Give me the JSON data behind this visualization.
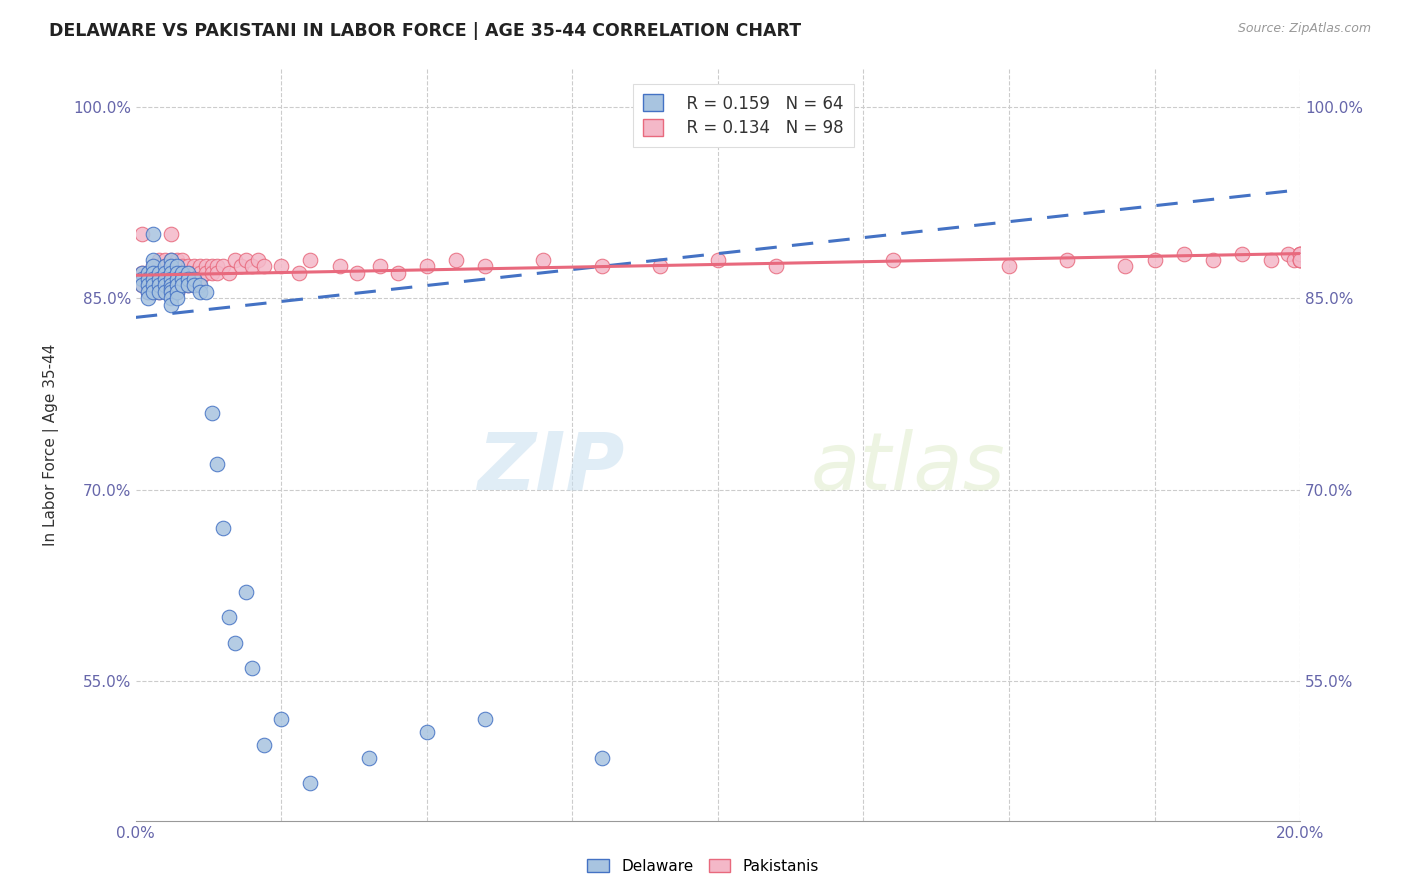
{
  "title": "DELAWARE VS PAKISTANI IN LABOR FORCE | AGE 35-44 CORRELATION CHART",
  "source": "Source: ZipAtlas.com",
  "ylabel": "In Labor Force | Age 35-44",
  "xlim": [
    0.0,
    0.2
  ],
  "ylim": [
    0.44,
    1.03
  ],
  "xticks": [
    0.0,
    0.025,
    0.05,
    0.075,
    0.1,
    0.125,
    0.15,
    0.175,
    0.2
  ],
  "xticklabels": [
    "0.0%",
    "",
    "",
    "",
    "",
    "",
    "",
    "",
    "20.0%"
  ],
  "yticks": [
    0.55,
    0.7,
    0.85,
    1.0
  ],
  "yticklabels": [
    "55.0%",
    "70.0%",
    "85.0%",
    "100.0%"
  ],
  "legend_r1": "R = 0.159",
  "legend_n1": "N = 64",
  "legend_r2": "R = 0.134",
  "legend_n2": "N = 98",
  "delaware_color": "#a8c4e0",
  "pakistani_color": "#f4b8c8",
  "delaware_line_color": "#4472c4",
  "pakistani_line_color": "#e8697d",
  "watermark_zip": "ZIP",
  "watermark_atlas": "atlas",
  "delaware_x": [
    0.001,
    0.001,
    0.001,
    0.002,
    0.002,
    0.002,
    0.002,
    0.002,
    0.003,
    0.003,
    0.003,
    0.003,
    0.003,
    0.003,
    0.003,
    0.004,
    0.004,
    0.004,
    0.004,
    0.005,
    0.005,
    0.005,
    0.005,
    0.005,
    0.006,
    0.006,
    0.006,
    0.006,
    0.006,
    0.006,
    0.006,
    0.006,
    0.006,
    0.007,
    0.007,
    0.007,
    0.007,
    0.007,
    0.007,
    0.008,
    0.008,
    0.008,
    0.009,
    0.009,
    0.009,
    0.01,
    0.01,
    0.011,
    0.011,
    0.012,
    0.013,
    0.014,
    0.015,
    0.016,
    0.017,
    0.019,
    0.02,
    0.022,
    0.025,
    0.03,
    0.04,
    0.05,
    0.06,
    0.08
  ],
  "delaware_y": [
    0.87,
    0.865,
    0.86,
    0.87,
    0.865,
    0.86,
    0.855,
    0.85,
    0.9,
    0.88,
    0.875,
    0.87,
    0.865,
    0.86,
    0.855,
    0.87,
    0.865,
    0.86,
    0.855,
    0.875,
    0.87,
    0.865,
    0.86,
    0.855,
    0.88,
    0.875,
    0.87,
    0.865,
    0.86,
    0.857,
    0.855,
    0.85,
    0.845,
    0.875,
    0.87,
    0.865,
    0.86,
    0.855,
    0.85,
    0.87,
    0.865,
    0.86,
    0.87,
    0.865,
    0.86,
    0.865,
    0.86,
    0.86,
    0.855,
    0.855,
    0.76,
    0.72,
    0.67,
    0.6,
    0.58,
    0.62,
    0.56,
    0.5,
    0.52,
    0.47,
    0.49,
    0.51,
    0.52,
    0.49
  ],
  "pakistani_x": [
    0.001,
    0.001,
    0.001,
    0.002,
    0.002,
    0.002,
    0.002,
    0.003,
    0.003,
    0.003,
    0.003,
    0.003,
    0.004,
    0.004,
    0.004,
    0.004,
    0.004,
    0.004,
    0.005,
    0.005,
    0.005,
    0.005,
    0.005,
    0.006,
    0.006,
    0.006,
    0.006,
    0.006,
    0.006,
    0.006,
    0.007,
    0.007,
    0.007,
    0.007,
    0.007,
    0.007,
    0.008,
    0.008,
    0.008,
    0.008,
    0.008,
    0.009,
    0.009,
    0.009,
    0.009,
    0.01,
    0.01,
    0.01,
    0.01,
    0.011,
    0.011,
    0.011,
    0.012,
    0.012,
    0.013,
    0.013,
    0.014,
    0.014,
    0.015,
    0.016,
    0.017,
    0.018,
    0.019,
    0.02,
    0.021,
    0.022,
    0.025,
    0.028,
    0.03,
    0.035,
    0.038,
    0.042,
    0.045,
    0.05,
    0.055,
    0.06,
    0.07,
    0.08,
    0.09,
    0.1,
    0.11,
    0.13,
    0.15,
    0.16,
    0.17,
    0.175,
    0.18,
    0.185,
    0.19,
    0.195,
    0.198,
    0.199,
    0.2,
    0.2,
    0.2,
    0.2,
    0.2,
    0.2
  ],
  "pakistani_y": [
    0.87,
    0.9,
    0.86,
    0.87,
    0.865,
    0.86,
    0.855,
    0.875,
    0.87,
    0.865,
    0.86,
    0.855,
    0.88,
    0.875,
    0.87,
    0.865,
    0.86,
    0.855,
    0.88,
    0.875,
    0.87,
    0.865,
    0.86,
    0.9,
    0.88,
    0.875,
    0.87,
    0.865,
    0.86,
    0.855,
    0.88,
    0.875,
    0.87,
    0.865,
    0.86,
    0.855,
    0.88,
    0.875,
    0.87,
    0.865,
    0.86,
    0.875,
    0.87,
    0.865,
    0.86,
    0.875,
    0.87,
    0.865,
    0.86,
    0.875,
    0.87,
    0.865,
    0.875,
    0.87,
    0.875,
    0.87,
    0.875,
    0.87,
    0.875,
    0.87,
    0.88,
    0.875,
    0.88,
    0.875,
    0.88,
    0.875,
    0.875,
    0.87,
    0.88,
    0.875,
    0.87,
    0.875,
    0.87,
    0.875,
    0.88,
    0.875,
    0.88,
    0.875,
    0.875,
    0.88,
    0.875,
    0.88,
    0.875,
    0.88,
    0.875,
    0.88,
    0.885,
    0.88,
    0.885,
    0.88,
    0.885,
    0.88,
    0.885,
    0.88,
    0.885,
    0.88,
    0.885,
    0.88
  ]
}
